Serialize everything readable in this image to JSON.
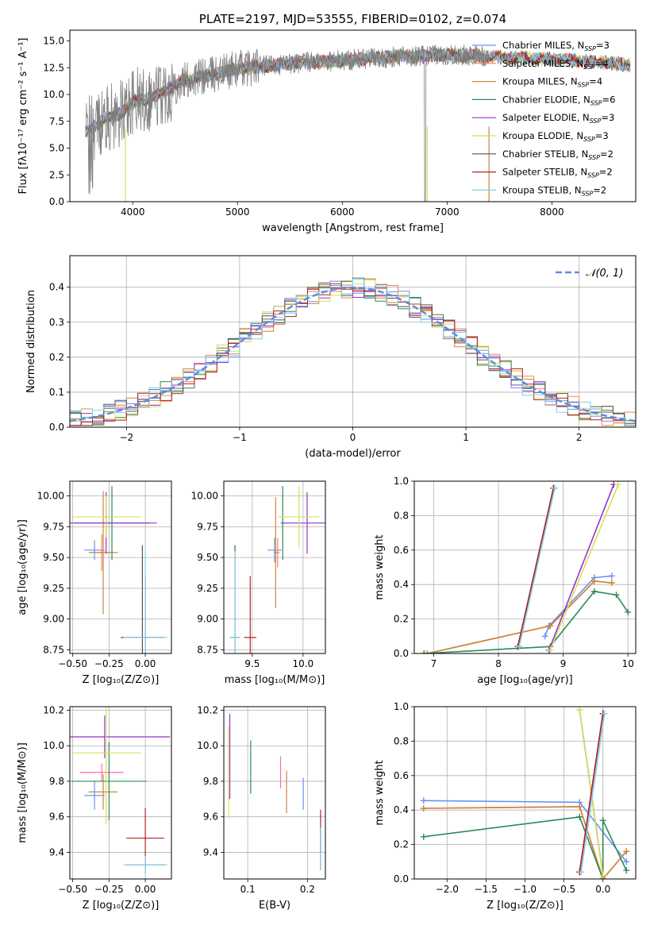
{
  "chart_data": [
    {
      "id": "spectrum",
      "type": "line",
      "title": "PLATE=2197, MJD=53555, FIBERID=0102, z=0.074",
      "xlabel": "wavelength [Angstrom, rest frame]",
      "ylabel": "Flux [fλ10⁻¹⁷ erg cm⁻² s⁻¹ A⁻¹]",
      "xlim": [
        3400,
        8800
      ],
      "ylim": [
        0,
        16
      ],
      "xticks": [
        4000,
        5000,
        6000,
        7000,
        8000
      ],
      "yticks": [
        0.0,
        2.5,
        5.0,
        7.5,
        10.0,
        12.5,
        15.0
      ],
      "grid": false,
      "legend_position": "right",
      "legend": [
        {
          "name": "Chabrier MILES, N",
          "sub": "SSP",
          "suffix": "=3",
          "color": "#6495ed"
        },
        {
          "name": "Salpeter MILES, N",
          "sub": "SSP",
          "suffix": "=4",
          "color": "#ff7f50"
        },
        {
          "name": "Kroupa MILES, N",
          "sub": "SSP",
          "suffix": "=4",
          "color": "#cd853f"
        },
        {
          "name": "Chabrier ELODIE, N",
          "sub": "SSP",
          "suffix": "=6",
          "color": "#2e8b57"
        },
        {
          "name": "Salpeter ELODIE, N",
          "sub": "SSP",
          "suffix": "=3",
          "color": "#9932cc"
        },
        {
          "name": "Kroupa ELODIE, N",
          "sub": "SSP",
          "suffix": "=3",
          "color": "#d4e157"
        },
        {
          "name": "Chabrier STELIB, N",
          "sub": "SSP",
          "suffix": "=2",
          "color": "#555555"
        },
        {
          "name": "Salpeter STELIB, N",
          "sub": "SSP",
          "suffix": "=2",
          "color": "#b22222"
        },
        {
          "name": "Kroupa STELIB, N",
          "sub": "SSP",
          "suffix": "=2",
          "color": "#87ceeb"
        }
      ],
      "model_trend": [
        [
          3550,
          6.5
        ],
        [
          3700,
          7.5
        ],
        [
          3900,
          8.3
        ],
        [
          4000,
          9.3
        ],
        [
          4200,
          9.8
        ],
        [
          4500,
          11.3
        ],
        [
          5000,
          12.4
        ],
        [
          5500,
          12.9
        ],
        [
          6000,
          13.2
        ],
        [
          6500,
          13.5
        ],
        [
          7000,
          13.7
        ],
        [
          7500,
          13.5
        ],
        [
          8000,
          13.3
        ],
        [
          8500,
          13.0
        ],
        [
          8750,
          12.7
        ]
      ],
      "data_end": 7400
    },
    {
      "id": "residuals",
      "type": "line",
      "xlabel": "(data-model)/error",
      "ylabel": "Normed distribution",
      "xlim": [
        -2.5,
        2.5
      ],
      "ylim": [
        0,
        0.49
      ],
      "xticks": [
        -2,
        -1,
        0,
        1,
        2
      ],
      "yticks": [
        0.0,
        0.1,
        0.2,
        0.3,
        0.4
      ],
      "grid": true,
      "legend_position": "top-right",
      "reference": {
        "name": "𝒩(0, 1)",
        "color": "#5b8ee0"
      },
      "bin_width": 0.1
    },
    {
      "id": "age-vs-Z",
      "type": "scatter",
      "xlabel": "Z [log₁₀(Z/Z⊙)]",
      "ylabel": "age  [log₁₀(age/yr)]",
      "xlim": [
        -0.52,
        0.18
      ],
      "ylim": [
        8.72,
        10.12
      ],
      "xticks": [
        -0.5,
        -0.25,
        0.0
      ],
      "xtick_labels": [
        "−0.50",
        "−0.25",
        "0.00"
      ],
      "yticks": [
        8.75,
        9.0,
        9.25,
        9.5,
        9.75,
        10.0
      ],
      "points": [
        {
          "x": -0.35,
          "y": 9.56,
          "xerr": 0.07,
          "yerr": 0.08,
          "color": "#6495ed"
        },
        {
          "x": -0.3,
          "y": 9.54,
          "xerr": 0.07,
          "yerr": 0.15,
          "color": "#ff7f50"
        },
        {
          "x": -0.29,
          "y": 9.54,
          "xerr": 0.1,
          "yerr": 0.5,
          "color": "#cd853f"
        },
        {
          "x": -0.23,
          "y": 9.78,
          "xerr": 0.26,
          "yerr": 0.3,
          "color": "#2e8b57"
        },
        {
          "x": -0.27,
          "y": 9.78,
          "xerr": 0.35,
          "yerr": 0.25,
          "color": "#9932cc"
        },
        {
          "x": -0.27,
          "y": 9.83,
          "xerr": 0.24,
          "yerr": 0.17,
          "color": "#d4e157"
        },
        {
          "x": -0.02,
          "y": 8.85,
          "xerr": 0.15,
          "yerr": 0.75,
          "color": "#555555"
        },
        {
          "x": 0.0,
          "y": 8.85,
          "xerr": 0.12,
          "yerr": 0.5,
          "color": "#b22222"
        },
        {
          "x": 0.0,
          "y": 8.85,
          "xerr": 0.15,
          "yerr": 0.7,
          "color": "#87ceeb"
        }
      ]
    },
    {
      "id": "age-vs-mass",
      "type": "scatter",
      "xlabel": "mass [log₁₀(M/M⊙)]",
      "xlim": [
        9.22,
        10.22
      ],
      "ylim": [
        8.72,
        10.12
      ],
      "xticks": [
        9.5,
        10.0
      ],
      "yticks": [
        8.75,
        9.0,
        9.25,
        9.5,
        9.75,
        10.0
      ],
      "points": [
        {
          "x": 9.72,
          "y": 9.56,
          "xerr": 0.07,
          "yerr": 0.1,
          "color": "#6495ed"
        },
        {
          "x": 9.75,
          "y": 9.54,
          "xerr": 0.02,
          "yerr": 0.12,
          "color": "#ff7f50"
        },
        {
          "x": 9.73,
          "y": 9.54,
          "xerr": 0.02,
          "yerr": 0.45,
          "color": "#cd853f"
        },
        {
          "x": 9.8,
          "y": 9.78,
          "xerr": 0.02,
          "yerr": 0.3,
          "color": "#2e8b57"
        },
        {
          "x": 10.04,
          "y": 9.78,
          "xerr": 0.25,
          "yerr": 0.25,
          "color": "#9932cc"
        },
        {
          "x": 9.96,
          "y": 9.83,
          "xerr": 0.2,
          "yerr": 0.25,
          "color": "#d4e157"
        },
        {
          "x": 9.33,
          "y": 8.85,
          "xerr": 0.05,
          "yerr": 0.75,
          "color": "#555555"
        },
        {
          "x": 9.48,
          "y": 8.85,
          "xerr": 0.06,
          "yerr": 0.5,
          "color": "#b22222"
        },
        {
          "x": 9.33,
          "y": 8.85,
          "xerr": 0.05,
          "yerr": 0.7,
          "color": "#87ceeb"
        }
      ]
    },
    {
      "id": "weight-vs-age",
      "type": "line",
      "xlabel": "age  [log₁₀(age/yr)]",
      "ylabel": "mass weight",
      "xlim": [
        6.7,
        10.12
      ],
      "ylim": [
        0,
        1.0
      ],
      "xticks": [
        7,
        8,
        9,
        10
      ],
      "yticks": [
        0.0,
        0.2,
        0.4,
        0.6,
        0.8,
        1.0
      ],
      "series": [
        {
          "color": "#6495ed",
          "x": [
            8.72,
            8.78,
            9.48,
            9.75
          ],
          "y": [
            0.1,
            0.16,
            0.44,
            0.45
          ]
        },
        {
          "color": "#ff7f50",
          "x": [
            6.9,
            8.8,
            9.48,
            9.75
          ],
          "y": [
            0.0,
            0.16,
            0.42,
            0.41
          ]
        },
        {
          "color": "#cd853f",
          "x": [
            6.9,
            8.8,
            9.48,
            9.75
          ],
          "y": [
            0.0,
            0.16,
            0.42,
            0.41
          ]
        },
        {
          "color": "#2e8b57",
          "x": [
            6.85,
            8.8,
            9.48,
            9.82,
            10.0
          ],
          "y": [
            0.0,
            0.04,
            0.36,
            0.34,
            0.24
          ]
        },
        {
          "color": "#9932cc",
          "x": [
            8.78,
            9.78
          ],
          "y": [
            0.02,
            0.98
          ]
        },
        {
          "color": "#d4e157",
          "x": [
            8.8,
            9.85
          ],
          "y": [
            0.02,
            0.98
          ]
        },
        {
          "color": "#555555",
          "x": [
            8.3,
            8.85
          ],
          "y": [
            0.04,
            0.96
          ]
        },
        {
          "color": "#b22222",
          "x": [
            8.3,
            8.85
          ],
          "y": [
            0.04,
            0.96
          ]
        },
        {
          "color": "#87ceeb",
          "x": [
            8.32,
            8.87
          ],
          "y": [
            0.04,
            0.96
          ]
        }
      ]
    },
    {
      "id": "mass-vs-Z",
      "type": "scatter",
      "xlabel": "Z [log₁₀(Z/Z⊙)]",
      "ylabel": "mass [log₁₀(M/M⊙)]",
      "xlim": [
        -0.52,
        0.18
      ],
      "ylim": [
        9.25,
        10.22
      ],
      "xticks": [
        -0.5,
        -0.25,
        0.0
      ],
      "xtick_labels": [
        "−0.50",
        "−0.25",
        "0.00"
      ],
      "yticks": [
        9.4,
        9.6,
        9.8,
        10.0,
        10.2
      ],
      "points": [
        {
          "x": -0.35,
          "y": 9.72,
          "xerr": 0.07,
          "yerr": 0.08,
          "color": "#6495ed"
        },
        {
          "x": -0.3,
          "y": 9.85,
          "xerr": 0.15,
          "yerr": 0.05,
          "color": "#ff69b4"
        },
        {
          "x": -0.29,
          "y": 9.74,
          "xerr": 0.1,
          "yerr": 0.1,
          "color": "#cd853f"
        },
        {
          "x": -0.25,
          "y": 9.8,
          "xerr": 0.26,
          "yerr": 0.22,
          "color": "#2e8b57"
        },
        {
          "x": -0.28,
          "y": 10.05,
          "xerr": 0.45,
          "yerr": 0.12,
          "color": "#9932cc"
        },
        {
          "x": -0.27,
          "y": 9.96,
          "xerr": 0.24,
          "yerr": 0.4,
          "color": "#d4e157"
        },
        {
          "x": 0.0,
          "y": 9.33,
          "xerr": 0.13,
          "yerr": 0.05,
          "color": "#555555"
        },
        {
          "x": 0.0,
          "y": 9.48,
          "xerr": 0.13,
          "yerr": 0.17,
          "color": "#b22222"
        },
        {
          "x": 0.0,
          "y": 9.33,
          "xerr": 0.15,
          "yerr": 0.05,
          "color": "#87ceeb"
        }
      ]
    },
    {
      "id": "mass-vs-EBV",
      "type": "scatter",
      "xlabel": "E(B-V)",
      "xlim": [
        0.06,
        0.23
      ],
      "ylim": [
        9.25,
        10.22
      ],
      "xticks": [
        0.1,
        0.2
      ],
      "yticks": [
        9.4,
        9.6,
        9.8,
        10.0,
        10.2
      ],
      "points": [
        {
          "x": 0.193,
          "y": 9.73,
          "yerr": 0.09,
          "color": "#6495ed"
        },
        {
          "x": 0.155,
          "y": 9.85,
          "yerr": 0.09,
          "color": "#ff69b4"
        },
        {
          "x": 0.165,
          "y": 9.74,
          "yerr": 0.12,
          "color": "#cd853f"
        },
        {
          "x": 0.105,
          "y": 9.88,
          "yerr": 0.15,
          "color": "#2e8b57"
        },
        {
          "x": 0.07,
          "y": 9.94,
          "yerr": 0.24,
          "color": "#9932cc"
        },
        {
          "x": 0.068,
          "y": 9.85,
          "yerr": 0.26,
          "color": "#d4e157"
        },
        {
          "x": 0.222,
          "y": 9.42,
          "yerr": 0.12,
          "color": "#555555"
        },
        {
          "x": 0.222,
          "y": 9.52,
          "yerr": 0.12,
          "color": "#b22222"
        },
        {
          "x": 0.222,
          "y": 9.42,
          "yerr": 0.12,
          "color": "#87ceeb"
        }
      ]
    },
    {
      "id": "weight-vs-Z",
      "type": "line",
      "xlabel": "Z [log₁₀(Z/Z⊙)]",
      "ylabel": "mass weight",
      "xlim": [
        -2.42,
        0.42
      ],
      "ylim": [
        0,
        1.0
      ],
      "xticks": [
        -2.0,
        -1.5,
        -1.0,
        -0.5,
        0.0
      ],
      "xtick_labels": [
        "−2.0",
        "−1.5",
        "−1.0",
        "−0.5",
        "0.0"
      ],
      "yticks": [
        0.0,
        0.2,
        0.4,
        0.6,
        0.8,
        1.0
      ],
      "series": [
        {
          "color": "#6495ed",
          "x": [
            -2.3,
            -0.3,
            0.3
          ],
          "y": [
            0.455,
            0.445,
            0.1
          ]
        },
        {
          "color": "#ff7f50",
          "x": [
            -2.3,
            -0.3,
            0.0,
            0.3
          ],
          "y": [
            0.41,
            0.42,
            0.0,
            0.16
          ]
        },
        {
          "color": "#cd853f",
          "x": [
            -2.3,
            -0.3,
            0.0,
            0.3
          ],
          "y": [
            0.41,
            0.42,
            0.0,
            0.16
          ]
        },
        {
          "color": "#2e8b57",
          "x": [
            -2.3,
            -0.3,
            0.0,
            0.0,
            0.3
          ],
          "y": [
            0.245,
            0.36,
            0.0,
            0.34,
            0.05
          ]
        },
        {
          "color": "#9932cc",
          "x": [
            -0.3,
            0.0
          ],
          "y": [
            0.98,
            0.02
          ]
        },
        {
          "color": "#d4e157",
          "x": [
            -0.3,
            0.0
          ],
          "y": [
            0.98,
            0.02
          ]
        },
        {
          "color": "#555555",
          "x": [
            -0.3,
            0.0
          ],
          "y": [
            0.04,
            0.96
          ]
        },
        {
          "color": "#b22222",
          "x": [
            -0.3,
            0.0
          ],
          "y": [
            0.04,
            0.96
          ]
        },
        {
          "color": "#87ceeb",
          "x": [
            -0.28,
            0.02
          ],
          "y": [
            0.04,
            0.96
          ]
        }
      ]
    }
  ]
}
